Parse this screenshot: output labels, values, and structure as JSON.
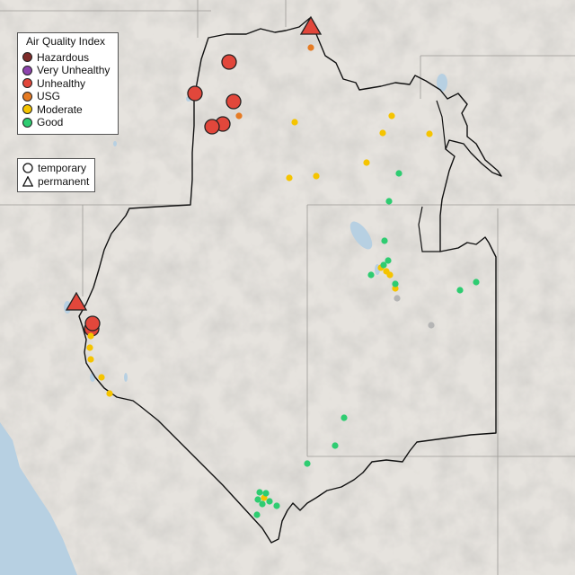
{
  "legend": {
    "title": "Air Quality Index",
    "categories": [
      {
        "label": "Hazardous",
        "color": "#7e2c2a"
      },
      {
        "label": "Very Unhealthy",
        "color": "#8e44ad"
      },
      {
        "label": "Unhealthy",
        "color": "#e2473b"
      },
      {
        "label": "USG",
        "color": "#e57b24"
      },
      {
        "label": "Moderate",
        "color": "#f5c400"
      },
      {
        "label": "Good",
        "color": "#2ecc71"
      }
    ],
    "site_types": [
      {
        "label": "temporary",
        "icon": "circle-outline-icon"
      },
      {
        "label": "permanent",
        "icon": "triangle-outline-icon"
      }
    ]
  },
  "colors": {
    "land": "#e4e1dc",
    "water": "#b7d0e2",
    "boundary": "#111111",
    "missing": "#b5b5b5"
  }
}
